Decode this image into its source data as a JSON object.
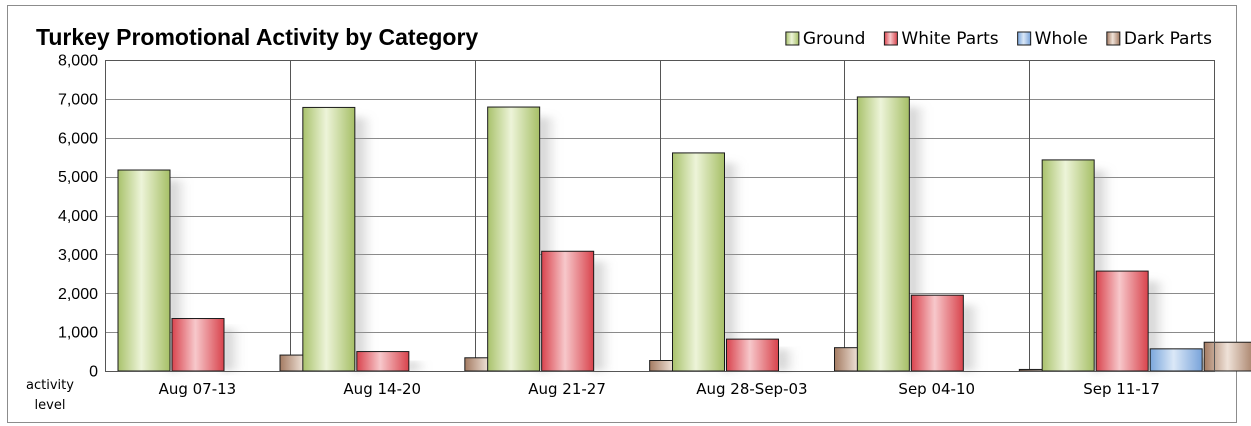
{
  "chart_data": {
    "type": "bar",
    "title": "Turkey Promotional Activity by Category",
    "ylabel_line1": "activity",
    "ylabel_line2": "level",
    "xlabel": "",
    "ylim": [
      0,
      8000
    ],
    "yticks": [
      0,
      1000,
      2000,
      3000,
      4000,
      5000,
      6000,
      7000,
      8000
    ],
    "ytick_labels": [
      "0",
      "1,000",
      "2,000",
      "3,000",
      "4,000",
      "5,000",
      "6,000",
      "7,000",
      "8,000"
    ],
    "grid": true,
    "legend_position": "top-right",
    "categories": [
      "Aug 07-13",
      "Aug 14-20",
      "Aug 21-27",
      "Aug 28-Sep-03",
      "Sep 04-10",
      "Sep 11-17"
    ],
    "series": [
      {
        "name": "Ground",
        "color": "#b5cc7e",
        "values": [
          5170,
          6780,
          6790,
          5610,
          7050,
          5430
        ]
      },
      {
        "name": "White Parts",
        "color": "#e0575f",
        "values": [
          1350,
          500,
          3080,
          820,
          1950,
          2570
        ]
      },
      {
        "name": "Whole",
        "color": "#8fb5e0",
        "values": [
          0,
          0,
          0,
          0,
          0,
          570
        ]
      },
      {
        "name": "Dark Parts",
        "color": "#b89078",
        "values": [
          410,
          340,
          270,
          600,
          40,
          740
        ]
      }
    ]
  }
}
